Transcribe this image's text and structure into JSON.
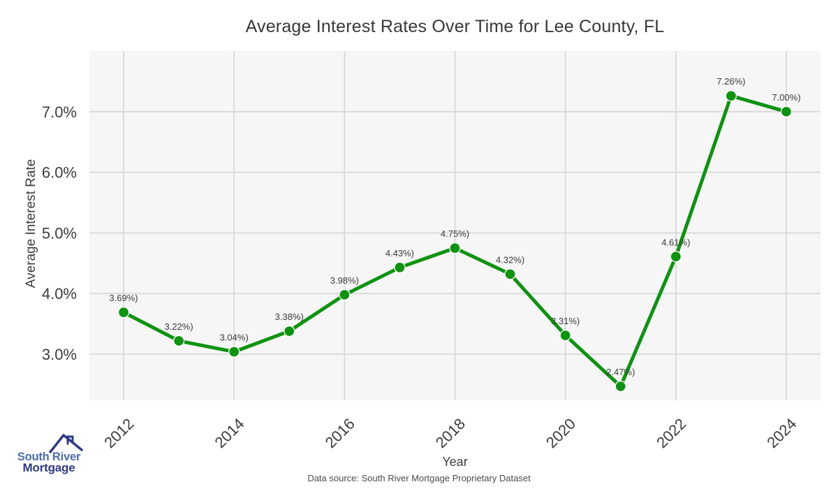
{
  "footer": {
    "text": "Data source: South River Mortgage Proprietary Dataset"
  },
  "logo": {
    "line1": "South River",
    "line2": "Mortgage",
    "line1_color": "#4a6cb3",
    "line2_color": "#2d3a88",
    "roof_color": "#2d3a88"
  },
  "chart_data": {
    "type": "line",
    "title": "Average Interest Rates Over Time for Lee County, FL",
    "xlabel": "Year",
    "ylabel": "Average Interest Rate",
    "x": [
      2012,
      2013,
      2014,
      2015,
      2016,
      2017,
      2018,
      2019,
      2020,
      2021,
      2022,
      2023,
      2024
    ],
    "values": [
      3.69,
      3.22,
      3.04,
      3.38,
      3.98,
      4.43,
      4.75,
      4.32,
      3.31,
      2.47,
      4.61,
      7.26,
      7.0
    ],
    "point_labels": [
      "3.69%)",
      "3.22%)",
      "3.04%)",
      "3.38%)",
      "3.98%)",
      "4.43%)",
      "4.75%)",
      "4.32%)",
      "3.31%)",
      "2.47%)",
      "4.61%)",
      "7.26%)",
      "7.00%)"
    ],
    "x_ticks": [
      2012,
      2014,
      2016,
      2018,
      2020,
      2022,
      2024
    ],
    "y_ticks": [
      {
        "value": 3.0,
        "label": "3.0%"
      },
      {
        "value": 4.0,
        "label": "4.0%"
      },
      {
        "value": 5.0,
        "label": "5.0%"
      },
      {
        "value": 6.0,
        "label": "6.0%"
      },
      {
        "value": 7.0,
        "label": "7.0%"
      }
    ],
    "xlim": [
      2011.38,
      2024.62
    ],
    "ylim": [
      2.24,
      8.0
    ],
    "grid": true,
    "legend": "none",
    "line_color": "#0d9310",
    "marker_color": "#0d9310",
    "marker_edge_color": "#ffffff",
    "plot_bg": "#f6f6f6",
    "grid_color": "#d8d8d8",
    "tick_color": "#3d3d3d",
    "point_label_color": "#3a3a3a"
  }
}
